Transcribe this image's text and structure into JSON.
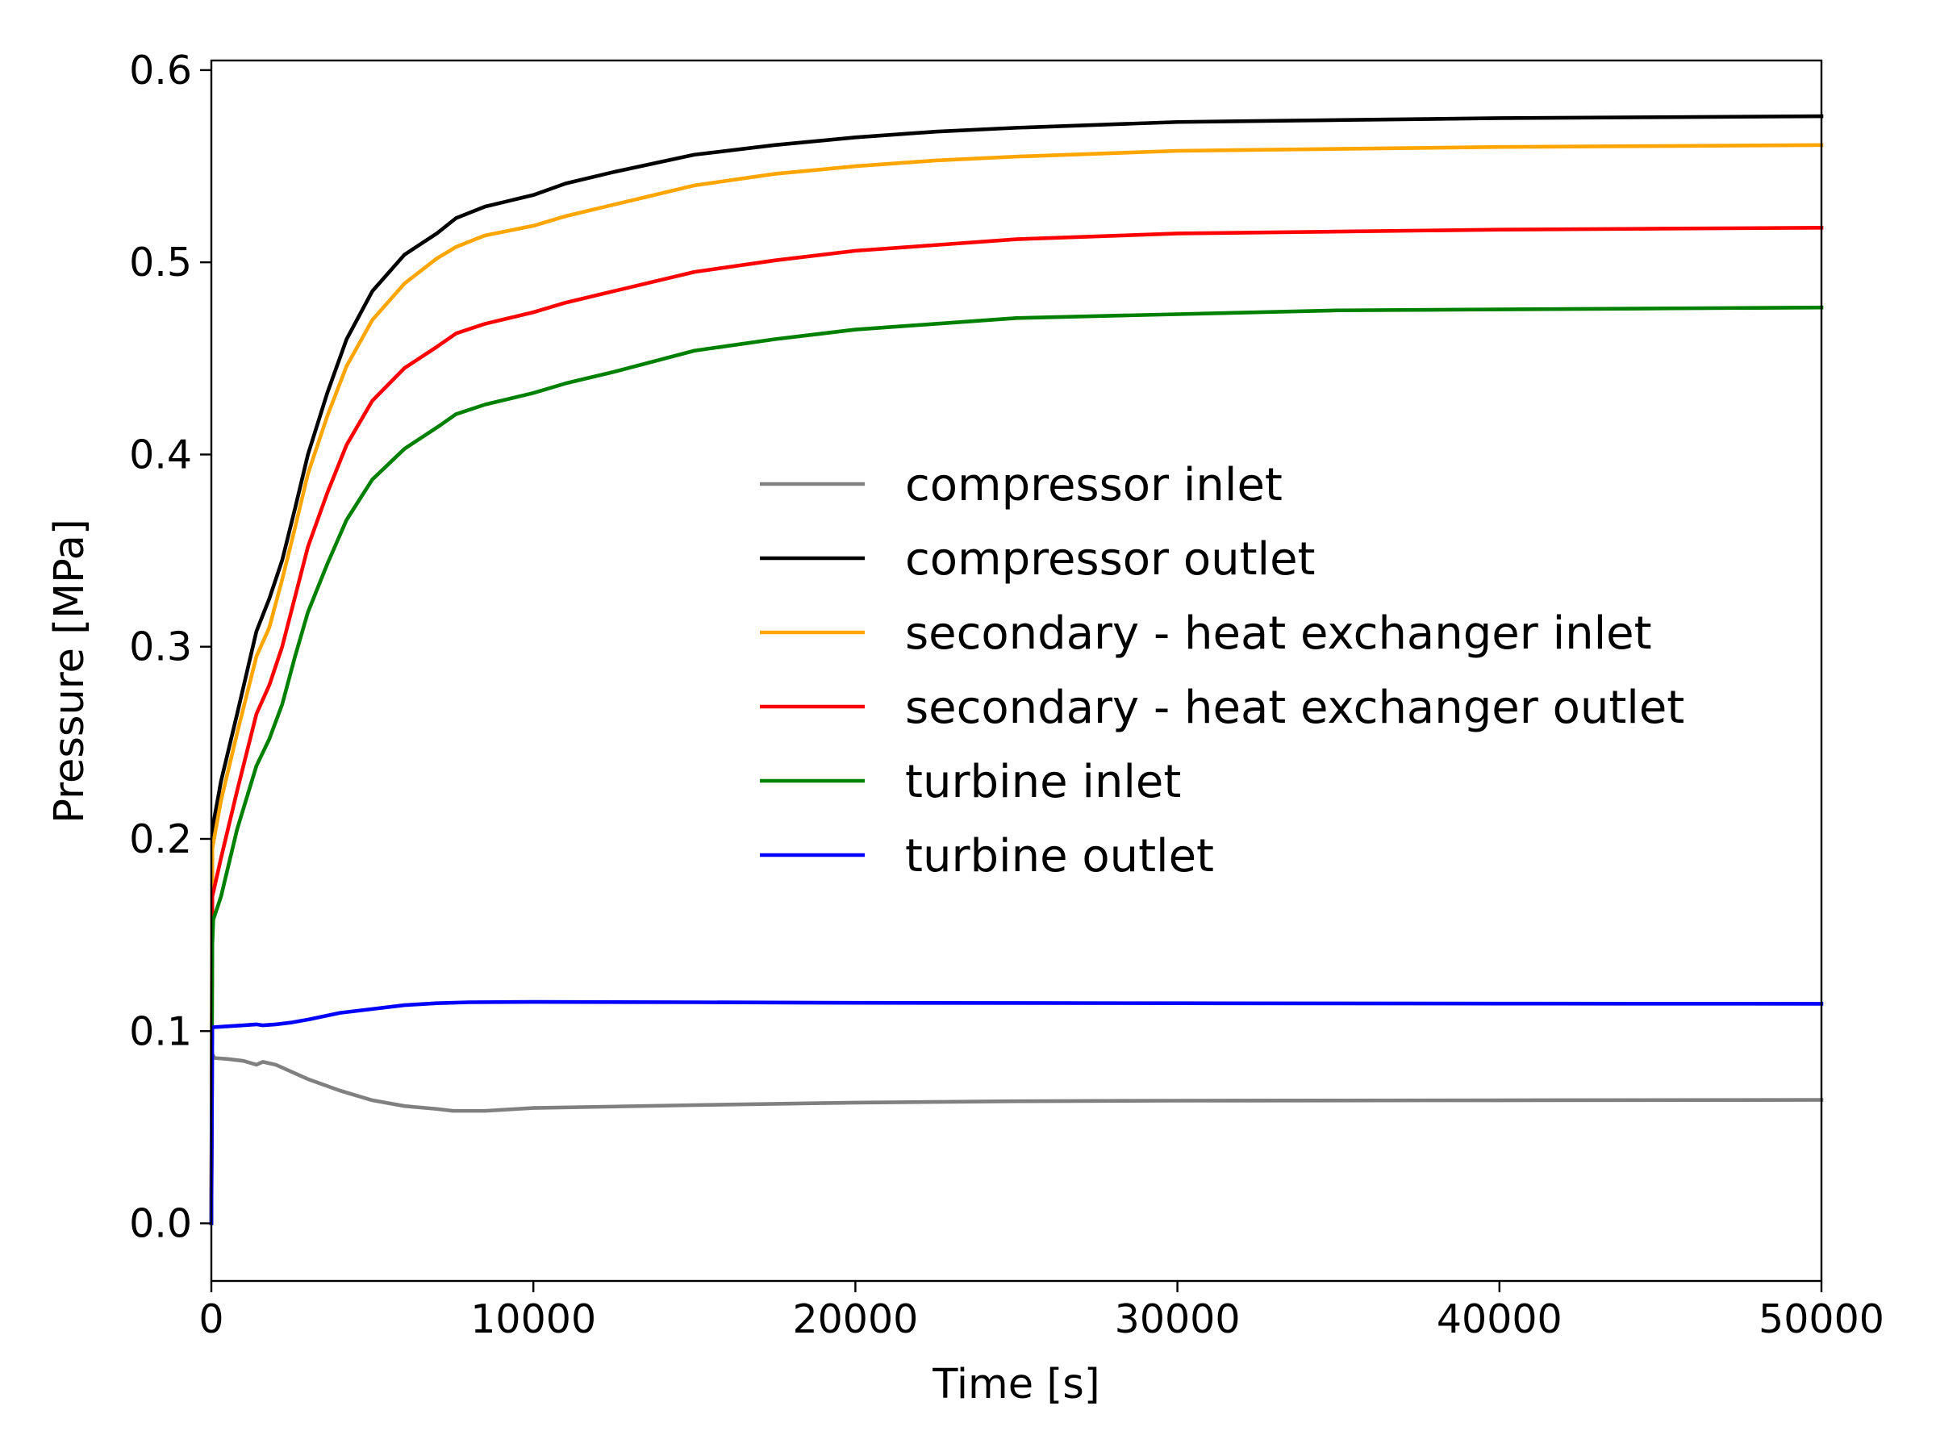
{
  "chart_data": {
    "type": "line",
    "xlabel": "Time [s]",
    "ylabel": "Pressure [MPa]",
    "xlim": [
      0,
      50000
    ],
    "ylim": [
      -0.03,
      0.605
    ],
    "xticks": [
      0,
      10000,
      20000,
      30000,
      40000,
      50000
    ],
    "xtick_labels": [
      "0",
      "10000",
      "20000",
      "30000",
      "40000",
      "50000"
    ],
    "yticks": [
      0.0,
      0.1,
      0.2,
      0.3,
      0.4,
      0.5,
      0.6
    ],
    "ytick_labels": [
      "0.0",
      "0.1",
      "0.2",
      "0.3",
      "0.4",
      "0.5",
      "0.6"
    ],
    "grid": false,
    "legend_position": "center-right",
    "series": [
      {
        "name": "compressor inlet",
        "color": "#808080",
        "points": [
          [
            0,
            0.0
          ],
          [
            30,
            0.088
          ],
          [
            100,
            0.086
          ],
          [
            500,
            0.0855
          ],
          [
            1000,
            0.0845
          ],
          [
            1400,
            0.0825
          ],
          [
            1600,
            0.084
          ],
          [
            2000,
            0.0825
          ],
          [
            3000,
            0.075
          ],
          [
            4000,
            0.069
          ],
          [
            5000,
            0.064
          ],
          [
            6000,
            0.061
          ],
          [
            7000,
            0.0595
          ],
          [
            7500,
            0.0585
          ],
          [
            8500,
            0.0585
          ],
          [
            10000,
            0.06
          ],
          [
            15000,
            0.0615
          ],
          [
            20000,
            0.0628
          ],
          [
            25000,
            0.0635
          ],
          [
            30000,
            0.0638
          ],
          [
            40000,
            0.064
          ],
          [
            50000,
            0.0642
          ]
        ]
      },
      {
        "name": "compressor outlet",
        "color": "#000000",
        "points": [
          [
            0,
            0.0
          ],
          [
            30,
            0.205
          ],
          [
            300,
            0.23
          ],
          [
            800,
            0.265
          ],
          [
            1400,
            0.308
          ],
          [
            1800,
            0.325
          ],
          [
            2200,
            0.345
          ],
          [
            2600,
            0.372
          ],
          [
            3000,
            0.4
          ],
          [
            3600,
            0.432
          ],
          [
            4200,
            0.46
          ],
          [
            5000,
            0.485
          ],
          [
            6000,
            0.504
          ],
          [
            7000,
            0.515
          ],
          [
            7600,
            0.523
          ],
          [
            8500,
            0.529
          ],
          [
            10000,
            0.535
          ],
          [
            11000,
            0.541
          ],
          [
            12500,
            0.547
          ],
          [
            15000,
            0.556
          ],
          [
            17500,
            0.561
          ],
          [
            20000,
            0.565
          ],
          [
            22500,
            0.568
          ],
          [
            25000,
            0.57
          ],
          [
            30000,
            0.573
          ],
          [
            35000,
            0.574
          ],
          [
            40000,
            0.575
          ],
          [
            45000,
            0.5755
          ],
          [
            50000,
            0.576
          ]
        ]
      },
      {
        "name": "secondary - heat exchanger inlet",
        "color": "#FFA500",
        "points": [
          [
            0,
            0.0
          ],
          [
            30,
            0.195
          ],
          [
            300,
            0.22
          ],
          [
            800,
            0.255
          ],
          [
            1400,
            0.295
          ],
          [
            1800,
            0.31
          ],
          [
            2200,
            0.335
          ],
          [
            2600,
            0.362
          ],
          [
            3000,
            0.39
          ],
          [
            3600,
            0.42
          ],
          [
            4200,
            0.446
          ],
          [
            5000,
            0.47
          ],
          [
            6000,
            0.489
          ],
          [
            7000,
            0.502
          ],
          [
            7600,
            0.508
          ],
          [
            8500,
            0.514
          ],
          [
            10000,
            0.519
          ],
          [
            11000,
            0.524
          ],
          [
            12500,
            0.53
          ],
          [
            15000,
            0.54
          ],
          [
            17500,
            0.546
          ],
          [
            20000,
            0.55
          ],
          [
            22500,
            0.553
          ],
          [
            25000,
            0.555
          ],
          [
            30000,
            0.558
          ],
          [
            35000,
            0.559
          ],
          [
            40000,
            0.56
          ],
          [
            45000,
            0.5605
          ],
          [
            50000,
            0.561
          ]
        ]
      },
      {
        "name": "secondary - heat exchanger outlet",
        "color": "#FF0000",
        "points": [
          [
            0,
            0.0
          ],
          [
            30,
            0.17
          ],
          [
            300,
            0.19
          ],
          [
            800,
            0.225
          ],
          [
            1400,
            0.265
          ],
          [
            1800,
            0.28
          ],
          [
            2200,
            0.3
          ],
          [
            2600,
            0.326
          ],
          [
            3000,
            0.352
          ],
          [
            3600,
            0.38
          ],
          [
            4200,
            0.405
          ],
          [
            5000,
            0.428
          ],
          [
            6000,
            0.445
          ],
          [
            7000,
            0.456
          ],
          [
            7600,
            0.463
          ],
          [
            8500,
            0.468
          ],
          [
            10000,
            0.474
          ],
          [
            11000,
            0.479
          ],
          [
            12500,
            0.485
          ],
          [
            15000,
            0.495
          ],
          [
            17500,
            0.501
          ],
          [
            20000,
            0.506
          ],
          [
            22500,
            0.509
          ],
          [
            25000,
            0.512
          ],
          [
            30000,
            0.515
          ],
          [
            35000,
            0.516
          ],
          [
            40000,
            0.517
          ],
          [
            45000,
            0.5175
          ],
          [
            50000,
            0.518
          ]
        ]
      },
      {
        "name": "turbine inlet",
        "color": "#008000",
        "points": [
          [
            0,
            0.0
          ],
          [
            30,
            0.145
          ],
          [
            60,
            0.158
          ],
          [
            300,
            0.17
          ],
          [
            800,
            0.205
          ],
          [
            1400,
            0.238
          ],
          [
            1800,
            0.252
          ],
          [
            2200,
            0.27
          ],
          [
            2600,
            0.295
          ],
          [
            3000,
            0.318
          ],
          [
            3600,
            0.343
          ],
          [
            4200,
            0.366
          ],
          [
            5000,
            0.387
          ],
          [
            6000,
            0.403
          ],
          [
            7000,
            0.414
          ],
          [
            7600,
            0.421
          ],
          [
            8500,
            0.426
          ],
          [
            10000,
            0.432
          ],
          [
            11000,
            0.437
          ],
          [
            12500,
            0.443
          ],
          [
            15000,
            0.454
          ],
          [
            17500,
            0.46
          ],
          [
            20000,
            0.465
          ],
          [
            22500,
            0.468
          ],
          [
            25000,
            0.471
          ],
          [
            30000,
            0.473
          ],
          [
            35000,
            0.475
          ],
          [
            40000,
            0.4755
          ],
          [
            45000,
            0.476
          ],
          [
            50000,
            0.4765
          ]
        ]
      },
      {
        "name": "turbine outlet",
        "color": "#0000FF",
        "points": [
          [
            0,
            0.0
          ],
          [
            30,
            0.102
          ],
          [
            500,
            0.1025
          ],
          [
            1000,
            0.103
          ],
          [
            1400,
            0.1035
          ],
          [
            1600,
            0.103
          ],
          [
            2000,
            0.1035
          ],
          [
            2500,
            0.1045
          ],
          [
            3000,
            0.106
          ],
          [
            4000,
            0.1095
          ],
          [
            5000,
            0.1115
          ],
          [
            6000,
            0.1135
          ],
          [
            7000,
            0.1145
          ],
          [
            8000,
            0.115
          ],
          [
            10000,
            0.1152
          ],
          [
            15000,
            0.115
          ],
          [
            20000,
            0.1147
          ],
          [
            30000,
            0.1145
          ],
          [
            40000,
            0.1143
          ],
          [
            50000,
            0.1142
          ]
        ]
      }
    ]
  }
}
